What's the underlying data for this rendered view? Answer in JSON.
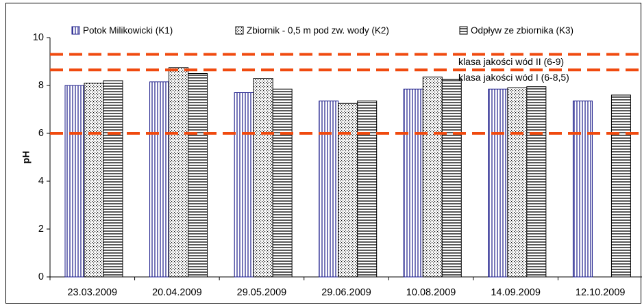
{
  "chart_data": {
    "type": "bar",
    "title": "",
    "xlabel": "",
    "ylabel": "pH",
    "ylim": [
      0,
      10
    ],
    "yticks": [
      "0",
      "2",
      "4",
      "6",
      "8",
      "10"
    ],
    "grid": false,
    "legend_position": "top",
    "categories": [
      "23.03.2009",
      "20.04.2009",
      "29.05.2009",
      "29.06.2009",
      "10.08.2009",
      "14.09.2009",
      "12.10.2009"
    ],
    "series": [
      {
        "name": "Potok Milikowicki (K1)",
        "values": [
          8.0,
          8.15,
          7.7,
          7.35,
          7.85,
          7.85,
          7.35
        ],
        "color": "#1b1b8a",
        "pattern": "vertical-lines"
      },
      {
        "name": "Zbiornik - 0,5 m pod zw. wody (K2)",
        "values": [
          8.1,
          8.75,
          8.3,
          7.25,
          8.35,
          7.9,
          null
        ],
        "color": "#000000",
        "pattern": "dots"
      },
      {
        "name": "Odpływ ze zbiornika (K3)",
        "values": [
          8.2,
          8.5,
          7.85,
          7.35,
          8.25,
          7.95,
          7.6
        ],
        "color": "#000000",
        "pattern": "horizontal-lines"
      }
    ],
    "reference_lines": [
      {
        "y": 9.3,
        "color": "#f04a0f"
      },
      {
        "y": 8.65,
        "color": "#f04a0f"
      },
      {
        "y": 6.0,
        "color": "#f04a0f"
      }
    ],
    "annotations": [
      {
        "text": "klasa jakości wód  II  (6-9)"
      },
      {
        "text": "klasa jakości wód  I  (6-8,5)"
      }
    ]
  }
}
